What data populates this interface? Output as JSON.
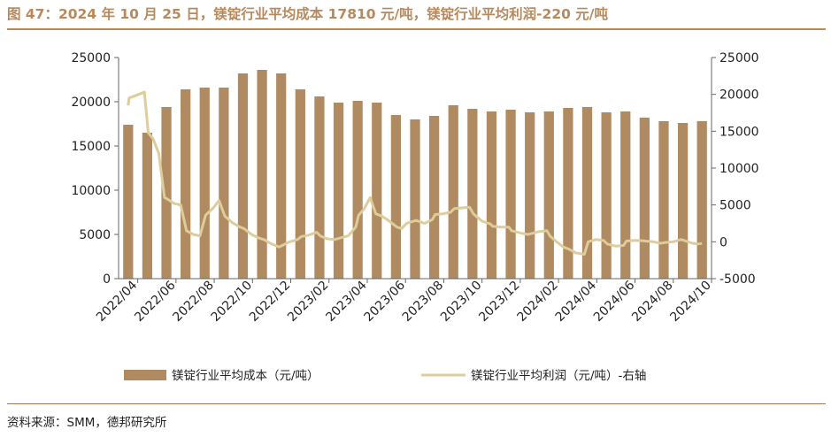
{
  "title": "图 47：2024 年 10 月 25 日，镁锭行业平均成本 17810 元/吨，镁锭行业平均利润-220 元/吨",
  "source": "资料来源：SMM，德邦研究所",
  "colors": {
    "bar": "#b08a60",
    "line": "#ddcc9c",
    "accent": "#b8895c"
  },
  "chart_data": {
    "type": "bar+line",
    "categories": [
      "2022/04",
      "2022/05",
      "2022/06",
      "2022/07",
      "2022/08",
      "2022/09",
      "2022/10",
      "2022/11",
      "2022/12",
      "2023/01",
      "2023/02",
      "2023/03",
      "2023/04",
      "2023/05",
      "2023/06",
      "2023/07",
      "2023/08",
      "2023/09",
      "2023/10",
      "2023/11",
      "2023/12",
      "2024/01",
      "2024/02",
      "2024/03",
      "2024/04",
      "2024/05",
      "2024/06",
      "2024/07",
      "2024/08",
      "2024/09",
      "2024/10"
    ],
    "x_tick_labels": [
      "2022/04",
      "2022/06",
      "2022/08",
      "2022/10",
      "2022/12",
      "2023/02",
      "2023/04",
      "2023/06",
      "2023/08",
      "2023/10",
      "2023/12",
      "2024/02",
      "2024/04",
      "2024/06",
      "2024/08",
      "2024/10"
    ],
    "series": [
      {
        "name": "镁锭行业平均成本（元/吨）",
        "type": "bar",
        "axis": "left",
        "values": [
          17400,
          16500,
          19400,
          21400,
          21600,
          21600,
          23200,
          23600,
          23200,
          21400,
          20600,
          19900,
          20100,
          19900,
          18500,
          18000,
          18400,
          19600,
          19200,
          18900,
          19100,
          18800,
          18900,
          19300,
          19400,
          18800,
          18900,
          18200,
          17800,
          17600,
          17810
        ]
      },
      {
        "name": "镁锭行业平均利润（元/吨）-右轴",
        "type": "line",
        "axis": "right",
        "points": [
          [
            0,
            18500
          ],
          [
            0.05,
            19500
          ],
          [
            0.85,
            20300
          ],
          [
            1.05,
            14800
          ],
          [
            1.3,
            14000
          ],
          [
            1.6,
            12000
          ],
          [
            1.9,
            6000
          ],
          [
            2.05,
            5800
          ],
          [
            2.4,
            5200
          ],
          [
            2.75,
            5000
          ],
          [
            3.05,
            1500
          ],
          [
            3.4,
            1000
          ],
          [
            3.75,
            800
          ],
          [
            4.05,
            3600
          ],
          [
            4.45,
            4600
          ],
          [
            4.75,
            5600
          ],
          [
            5.05,
            3500
          ],
          [
            5.45,
            2600
          ],
          [
            5.85,
            2000
          ],
          [
            6.05,
            1800
          ],
          [
            6.45,
            1000
          ],
          [
            6.85,
            500
          ],
          [
            7.1,
            300
          ],
          [
            7.5,
            -300
          ],
          [
            7.9,
            -700
          ],
          [
            8.05,
            -500
          ],
          [
            8.45,
            0
          ],
          [
            8.85,
            300
          ],
          [
            9.05,
            700
          ],
          [
            9.45,
            900
          ],
          [
            9.85,
            1300
          ],
          [
            10.05,
            800
          ],
          [
            10.4,
            400
          ],
          [
            10.8,
            300
          ],
          [
            11.05,
            500
          ],
          [
            11.5,
            800
          ],
          [
            11.9,
            2000
          ],
          [
            12.05,
            3600
          ],
          [
            12.35,
            4500
          ],
          [
            12.65,
            6000
          ],
          [
            12.95,
            3800
          ],
          [
            13.25,
            3500
          ],
          [
            13.55,
            3000
          ],
          [
            14.05,
            2000
          ],
          [
            14.3,
            1800
          ],
          [
            14.55,
            2500
          ],
          [
            15.05,
            2900
          ],
          [
            15.5,
            2500
          ],
          [
            15.9,
            3000
          ],
          [
            16.05,
            3700
          ],
          [
            16.45,
            3800
          ],
          [
            16.85,
            4000
          ],
          [
            17.05,
            4500
          ],
          [
            17.45,
            4600
          ],
          [
            17.85,
            4700
          ],
          [
            18.05,
            3800
          ],
          [
            18.5,
            2800
          ],
          [
            18.95,
            2400
          ],
          [
            19.05,
            2100
          ],
          [
            19.5,
            2000
          ],
          [
            19.9,
            2000
          ],
          [
            20.05,
            1500
          ],
          [
            20.5,
            1200
          ],
          [
            20.9,
            1000
          ],
          [
            21.05,
            1100
          ],
          [
            21.5,
            1400
          ],
          [
            21.9,
            1500
          ],
          [
            22.05,
            800
          ],
          [
            22.4,
            0
          ],
          [
            22.75,
            -700
          ],
          [
            23.05,
            -1000
          ],
          [
            23.4,
            -1500
          ],
          [
            23.85,
            -1700
          ],
          [
            24.05,
            0
          ],
          [
            24.45,
            300
          ],
          [
            24.85,
            200
          ],
          [
            25.05,
            -300
          ],
          [
            25.5,
            -600
          ],
          [
            25.9,
            -500
          ],
          [
            26.05,
            100
          ],
          [
            26.5,
            200
          ],
          [
            26.9,
            150
          ],
          [
            27.05,
            100
          ],
          [
            27.45,
            0
          ],
          [
            27.85,
            -200
          ],
          [
            28.05,
            -100
          ],
          [
            28.5,
            0
          ],
          [
            28.9,
            300
          ],
          [
            29.05,
            200
          ],
          [
            29.5,
            -200
          ],
          [
            29.8,
            -300
          ],
          [
            30.0,
            -220
          ]
        ]
      }
    ],
    "y_left": {
      "min": 0,
      "max": 25000,
      "ticks": [
        0,
        5000,
        10000,
        15000,
        20000,
        25000
      ]
    },
    "y_right": {
      "min": -5000,
      "max": 25000,
      "ticks": [
        -5000,
        0,
        5000,
        10000,
        15000,
        20000,
        25000
      ]
    },
    "legend": [
      "镁锭行业平均成本（元/吨）",
      "镁锭行业平均利润（元/吨）-右轴"
    ],
    "legend_position": "bottom"
  }
}
